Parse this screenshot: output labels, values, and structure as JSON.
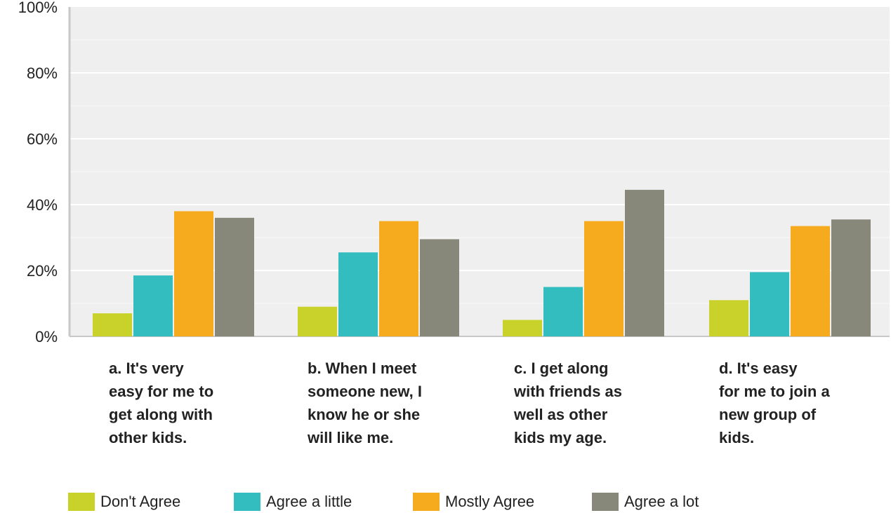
{
  "chart_data": {
    "type": "bar",
    "categories": [
      [
        "a. It's very",
        "easy for me to",
        "get along with",
        "other kids."
      ],
      [
        "b. When I meet",
        "someone new, I",
        "know he or she",
        "will like me."
      ],
      [
        "c. I get along",
        "with friends as",
        "well as other",
        "kids my age."
      ],
      [
        "d. It's easy",
        "for me to join a",
        "new group of",
        "kids."
      ]
    ],
    "series": [
      {
        "name": "Don't Agree",
        "color": "#c8d22a",
        "values": [
          7,
          9,
          5,
          11
        ]
      },
      {
        "name": "Agree a little",
        "color": "#33bdbf",
        "values": [
          18.5,
          25.5,
          15,
          19.5
        ]
      },
      {
        "name": "Mostly Agree",
        "color": "#f6ab1f",
        "values": [
          38,
          35,
          35,
          33.5
        ]
      },
      {
        "name": "Agree a lot",
        "color": "#88887a",
        "values": [
          36,
          29.5,
          44.5,
          35.5
        ]
      }
    ],
    "ytick_labels": [
      "0%",
      "20%",
      "40%",
      "60%",
      "80%",
      "100%"
    ],
    "yticks": [
      0,
      20,
      40,
      60,
      80,
      100
    ],
    "ylim": [
      0,
      100
    ],
    "grid": true,
    "legend_position": "bottom"
  }
}
